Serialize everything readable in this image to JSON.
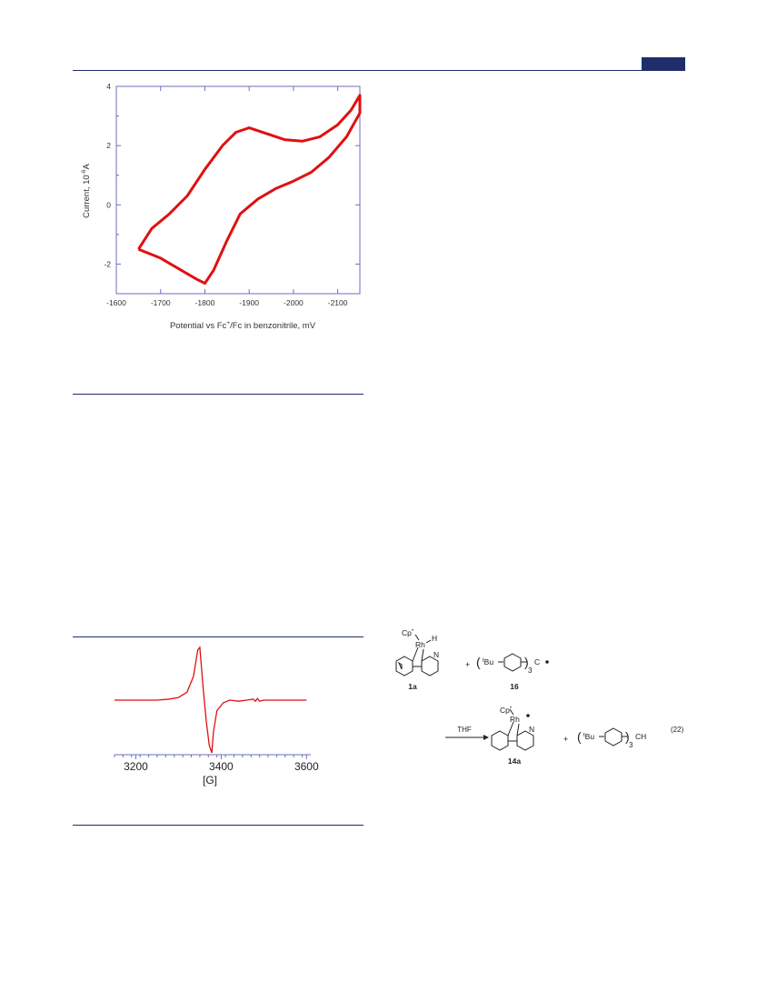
{
  "colors": {
    "rule": "#1f2d6b",
    "trace": "#e01010",
    "axis": "#6b6fc0",
    "text": "#333333"
  },
  "chart_data": [
    {
      "type": "line",
      "title": "",
      "xlabel_parts": [
        "Potential vs Fc",
        "+",
        "/Fc in benzonitrile, mV"
      ],
      "ylabel_parts": [
        "Current, 10",
        "-6",
        "A"
      ],
      "x_ticks": [
        "-1600",
        "-1700",
        "-1800",
        "-1900",
        "-2000",
        "-2100"
      ],
      "y_ticks": [
        "4",
        "2",
        "0",
        "-2"
      ],
      "xlim": [
        -1600,
        -2150
      ],
      "ylim": [
        -3,
        4
      ],
      "series": [
        {
          "values_forward": [
            [
              -1650,
              -1.5
            ],
            [
              -1680,
              -0.8
            ],
            [
              -1720,
              -0.3
            ],
            [
              -1760,
              0.3
            ],
            [
              -1800,
              1.2
            ],
            [
              -1840,
              2.0
            ],
            [
              -1870,
              2.45
            ],
            [
              -1900,
              2.6
            ],
            [
              -1940,
              2.4
            ],
            [
              -1980,
              2.2
            ],
            [
              -2020,
              2.15
            ],
            [
              -2060,
              2.3
            ],
            [
              -2100,
              2.7
            ],
            [
              -2130,
              3.2
            ],
            [
              -2150,
              3.7
            ]
          ],
          "values_reverse": [
            [
              -2150,
              3.1
            ],
            [
              -2120,
              2.3
            ],
            [
              -2080,
              1.6
            ],
            [
              -2040,
              1.1
            ],
            [
              -2000,
              0.8
            ],
            [
              -1960,
              0.55
            ],
            [
              -1920,
              0.2
            ],
            [
              -1880,
              -0.3
            ],
            [
              -1850,
              -1.2
            ],
            [
              -1820,
              -2.2
            ],
            [
              -1800,
              -2.65
            ],
            [
              -1780,
              -2.5
            ],
            [
              -1740,
              -2.15
            ],
            [
              -1700,
              -1.8
            ],
            [
              -1650,
              -1.5
            ]
          ]
        }
      ]
    },
    {
      "type": "line",
      "title": "",
      "xlabel": "[G]",
      "x_ticks": [
        "3200",
        "3400",
        "3600"
      ],
      "xlim": [
        3150,
        3610
      ],
      "series": [
        {
          "values": [
            [
              3150,
              0.0
            ],
            [
              3200,
              0.0
            ],
            [
              3250,
              0.0
            ],
            [
              3280,
              0.02
            ],
            [
              3300,
              0.05
            ],
            [
              3320,
              0.15
            ],
            [
              3335,
              0.45
            ],
            [
              3345,
              0.95
            ],
            [
              3350,
              1.0
            ],
            [
              3358,
              0.2
            ],
            [
              3365,
              -0.4
            ],
            [
              3372,
              -0.85
            ],
            [
              3378,
              -1.0
            ],
            [
              3382,
              -0.6
            ],
            [
              3390,
              -0.2
            ],
            [
              3405,
              -0.05
            ],
            [
              3420,
              0.0
            ],
            [
              3440,
              -0.02
            ],
            [
              3460,
              0.0
            ],
            [
              3475,
              0.02
            ],
            [
              3480,
              -0.02
            ],
            [
              3485,
              0.03
            ],
            [
              3490,
              -0.02
            ],
            [
              3500,
              0.0
            ],
            [
              3550,
              0.0
            ],
            [
              3600,
              0.0
            ]
          ]
        }
      ]
    }
  ],
  "scheme": {
    "reactant1_ligand_cp": "Cp",
    "reactant1_ligand_cp_sup": "*",
    "reactant1_metal": "Rh",
    "reactant1_hydride": "H",
    "reactant1_n": "N",
    "reactant1_label": "1a",
    "plus": "+",
    "reactant2_tbu": "Bu",
    "reactant2_tbu_sup": "t",
    "reactant2_sub": "3",
    "reactant2_c": "C",
    "reactant2_label": "16",
    "arrow_label": "THF",
    "product1_cp": "Cp",
    "product1_cp_sup": "*",
    "product1_metal": "Rh",
    "product1_n": "N",
    "product1_label": "14a",
    "product2_tbu": "Bu",
    "product2_tbu_sup": "t",
    "product2_sub": "3",
    "product2_ch": "CH",
    "equation_number": "(22)"
  }
}
